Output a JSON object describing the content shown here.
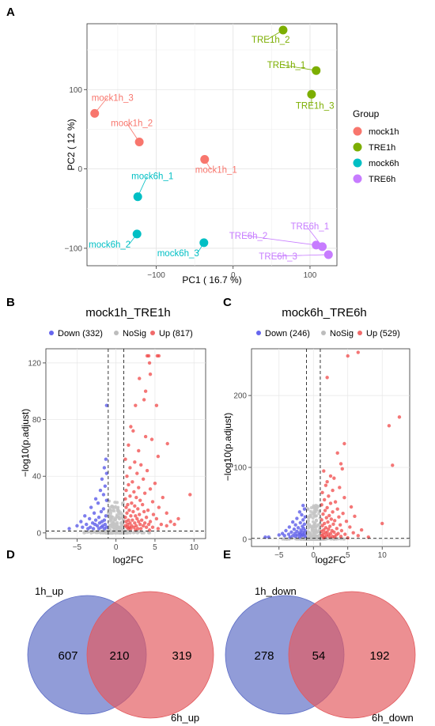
{
  "panels": {
    "A": "A",
    "B": "B",
    "C": "C",
    "D": "D",
    "E": "E"
  },
  "chart_data": [
    {
      "id": "pca",
      "type": "scatter",
      "title": "",
      "xlabel": "PC1 ( 16.7 %)",
      "ylabel": "PC2 ( 12 %)",
      "xlim": [
        -190,
        135
      ],
      "ylim": [
        -122,
        183
      ],
      "xticks": [
        -100,
        0,
        100
      ],
      "yticks": [
        -100,
        0,
        100
      ],
      "grid": true,
      "legend_title": "Group",
      "legend_position": "right",
      "groups": [
        {
          "name": "mock1h",
          "color": "#F8766D"
        },
        {
          "name": "TRE1h",
          "color": "#7CAE00"
        },
        {
          "name": "mock6h",
          "color": "#00BFC4"
        },
        {
          "name": "TRE6h",
          "color": "#C77CFF"
        }
      ],
      "points": [
        {
          "label": "mock1h_3",
          "group": "mock1h",
          "x": -180,
          "y": 70
        },
        {
          "label": "mock1h_2",
          "group": "mock1h",
          "x": -122,
          "y": 34
        },
        {
          "label": "mock1h_1",
          "group": "mock1h",
          "x": -37,
          "y": 12
        },
        {
          "label": "TRE1h_2",
          "group": "TRE1h",
          "x": 65,
          "y": 175
        },
        {
          "label": "TRE1h_1",
          "group": "TRE1h",
          "x": 108,
          "y": 124
        },
        {
          "label": "TRE1h_3",
          "group": "TRE1h",
          "x": 102,
          "y": 94
        },
        {
          "label": "mock6h_1",
          "group": "mock6h",
          "x": -124,
          "y": -35
        },
        {
          "label": "mock6h_2",
          "group": "mock6h",
          "x": -125,
          "y": -82
        },
        {
          "label": "mock6h_3",
          "group": "mock6h",
          "x": -38,
          "y": -93
        },
        {
          "label": "TRE6h_2",
          "group": "TRE6h",
          "x": 108,
          "y": -96
        },
        {
          "label": "TRE6h_1",
          "group": "TRE6h",
          "x": 116,
          "y": -98
        },
        {
          "label": "TRE6h_3",
          "group": "TRE6h",
          "x": 124,
          "y": -108
        }
      ]
    },
    {
      "id": "volcano1",
      "type": "scatter",
      "title": "mock1h_TRE1h",
      "xlabel": "log2FC",
      "ylabel": "−log10(p.adjust)",
      "xlim": [
        -9,
        11.5
      ],
      "ylim": [
        -4,
        130
      ],
      "xticks": [
        -5,
        0,
        5,
        10
      ],
      "yticks": [
        0,
        40,
        80,
        120
      ],
      "grid": true,
      "thresholds": {
        "x": [
          -1,
          1
        ],
        "y": 1.3
      },
      "legend_position": "top",
      "legend": [
        {
          "name": "Down (332)",
          "color": "#6666ee"
        },
        {
          "name": "NoSig",
          "color": "#bdbdbd"
        },
        {
          "name": "Up (817)",
          "color": "#f06a6a"
        }
      ],
      "points": {
        "down": [
          [
            -1.3,
            52
          ],
          [
            -1.5,
            46
          ],
          [
            -1.2,
            42
          ],
          [
            -1.8,
            38
          ],
          [
            -1.4,
            33
          ],
          [
            -2,
            30
          ],
          [
            -1.6,
            27
          ],
          [
            -2.6,
            24
          ],
          [
            -1.2,
            23
          ],
          [
            -2.3,
            21
          ],
          [
            -3.2,
            18
          ],
          [
            -1.6,
            17
          ],
          [
            -1.9,
            15
          ],
          [
            -2.8,
            14
          ],
          [
            -4,
            12
          ],
          [
            -1.3,
            12
          ],
          [
            -2.2,
            11
          ],
          [
            -3.4,
            10
          ],
          [
            -1.5,
            9
          ],
          [
            -2.6,
            9
          ],
          [
            -4.5,
            8
          ],
          [
            -1.8,
            8
          ],
          [
            -3,
            7
          ],
          [
            -2.1,
            7
          ],
          [
            -1.4,
            6
          ],
          [
            -3.8,
            6
          ],
          [
            -2.7,
            6
          ],
          [
            -1.7,
            5
          ],
          [
            -5,
            5
          ],
          [
            -2.4,
            5
          ],
          [
            -3.3,
            4
          ],
          [
            -1.9,
            4
          ],
          [
            -1.2,
            4
          ],
          [
            -4.3,
            4
          ],
          [
            -2.9,
            3
          ],
          [
            -2.2,
            3
          ],
          [
            -3.6,
            3
          ],
          [
            -1.5,
            3
          ],
          [
            -6,
            3
          ],
          [
            -1.2,
            90
          ]
        ],
        "up": [
          [
            4,
            125
          ],
          [
            4.2,
            125
          ],
          [
            5.3,
            125
          ],
          [
            5.5,
            125
          ],
          [
            4.3,
            120
          ],
          [
            4.4,
            112
          ],
          [
            3,
            109
          ],
          [
            3.8,
            100
          ],
          [
            3.6,
            94
          ],
          [
            2.5,
            90
          ],
          [
            5.2,
            90
          ],
          [
            1.9,
            75
          ],
          [
            2.2,
            72
          ],
          [
            3.8,
            68
          ],
          [
            4.6,
            66
          ],
          [
            6.6,
            63
          ],
          [
            1.6,
            62
          ],
          [
            2.9,
            58
          ],
          [
            5.4,
            54
          ],
          [
            1.2,
            52
          ],
          [
            2.4,
            50
          ],
          [
            3.2,
            48
          ],
          [
            1.8,
            46
          ],
          [
            4,
            44
          ],
          [
            2.7,
            42
          ],
          [
            1.4,
            40
          ],
          [
            3.5,
            38
          ],
          [
            2.1,
            36
          ],
          [
            5,
            35
          ],
          [
            1.6,
            34
          ],
          [
            2.9,
            32
          ],
          [
            4.4,
            31
          ],
          [
            1.3,
            30
          ],
          [
            2.3,
            29
          ],
          [
            3.7,
            28
          ],
          [
            9.5,
            27
          ],
          [
            1.8,
            26
          ],
          [
            2.6,
            25
          ],
          [
            6,
            25
          ],
          [
            1.2,
            24
          ],
          [
            3.1,
            23
          ],
          [
            4.7,
            22
          ],
          [
            2,
            21
          ],
          [
            1.5,
            20
          ],
          [
            3.4,
            20
          ],
          [
            2.4,
            19
          ],
          [
            5.5,
            18
          ],
          [
            1.3,
            18
          ],
          [
            2.8,
            17
          ],
          [
            4.1,
            16
          ],
          [
            1.7,
            16
          ],
          [
            3.6,
            15
          ],
          [
            2.2,
            15
          ],
          [
            6.5,
            14
          ],
          [
            1.4,
            14
          ],
          [
            3,
            13
          ],
          [
            4.8,
            13
          ],
          [
            1.9,
            12
          ],
          [
            2.5,
            12
          ],
          [
            3.9,
            11
          ],
          [
            8,
            10
          ],
          [
            1.2,
            11
          ],
          [
            2.7,
            10
          ],
          [
            5.2,
            10
          ],
          [
            1.6,
            9
          ],
          [
            3.3,
            9
          ],
          [
            2.1,
            9
          ],
          [
            4.4,
            8
          ],
          [
            1.3,
            8
          ],
          [
            2.9,
            8
          ],
          [
            7,
            8
          ],
          [
            1.8,
            7
          ],
          [
            3.7,
            7
          ],
          [
            2.4,
            7
          ],
          [
            5.8,
            6
          ],
          [
            1.5,
            6
          ],
          [
            3.1,
            6
          ],
          [
            4.2,
            6
          ],
          [
            2,
            5
          ],
          [
            1.2,
            5
          ],
          [
            2.6,
            5
          ],
          [
            6.5,
            5
          ],
          [
            3.5,
            5
          ],
          [
            1.7,
            4
          ],
          [
            4.7,
            4
          ],
          [
            2.3,
            4
          ],
          [
            1.4,
            4
          ],
          [
            3.9,
            4
          ],
          [
            2.8,
            3
          ],
          [
            1.9,
            3
          ],
          [
            5.4,
            3
          ],
          [
            3.2,
            3
          ],
          [
            1.6,
            3
          ],
          [
            2.5,
            2
          ],
          [
            4.3,
            2
          ],
          [
            7.5,
            6
          ]
        ]
      }
    },
    {
      "id": "volcano2",
      "type": "scatter",
      "title": "mock6h_TRE6h",
      "xlabel": "log2FC",
      "ylabel": "−log10(p.adjust)",
      "xlim": [
        -9,
        14
      ],
      "ylim": [
        -10,
        265
      ],
      "xticks": [
        -5,
        0,
        5,
        10
      ],
      "yticks": [
        0,
        100,
        200
      ],
      "grid": true,
      "thresholds": {
        "x": [
          -1,
          1
        ],
        "y": 1.3
      },
      "legend_position": "top",
      "legend": [
        {
          "name": "Down (246)",
          "color": "#6666ee"
        },
        {
          "name": "NoSig",
          "color": "#bdbdbd"
        },
        {
          "name": "Up (529)",
          "color": "#f06a6a"
        }
      ],
      "points": {
        "down": [
          [
            -1.5,
            47
          ],
          [
            -1.3,
            42
          ],
          [
            -2,
            38
          ],
          [
            -1.7,
            34
          ],
          [
            -1.2,
            31
          ],
          [
            -2.4,
            29
          ],
          [
            -1.5,
            27
          ],
          [
            -3,
            24
          ],
          [
            -1.9,
            23
          ],
          [
            -1.3,
            21
          ],
          [
            -2.6,
            20
          ],
          [
            -1.6,
            18
          ],
          [
            -3.5,
            17
          ],
          [
            -2.2,
            16
          ],
          [
            -1.4,
            15
          ],
          [
            -2.8,
            14
          ],
          [
            -1.8,
            13
          ],
          [
            -4,
            12
          ],
          [
            -1.2,
            12
          ],
          [
            -2.4,
            11
          ],
          [
            -3.2,
            10
          ],
          [
            -1.6,
            10
          ],
          [
            -2,
            9
          ],
          [
            -4.5,
            8
          ],
          [
            -1.3,
            8
          ],
          [
            -2.7,
            8
          ],
          [
            -3.6,
            7
          ],
          [
            -1.9,
            7
          ],
          [
            -5,
            6
          ],
          [
            -1.5,
            6
          ],
          [
            -2.3,
            6
          ],
          [
            -3,
            5
          ],
          [
            -1.7,
            5
          ],
          [
            -4.2,
            5
          ],
          [
            -2.6,
            4
          ],
          [
            -1.2,
            4
          ],
          [
            -6.5,
            3
          ],
          [
            -7,
            3
          ],
          [
            -3.4,
            3
          ],
          [
            -2,
            3
          ]
        ],
        "up": [
          [
            5,
            255
          ],
          [
            6.5,
            260
          ],
          [
            2,
            225
          ],
          [
            11,
            158
          ],
          [
            12.5,
            170
          ],
          [
            4.5,
            133
          ],
          [
            3.5,
            120
          ],
          [
            4,
            105
          ],
          [
            4.2,
            98
          ],
          [
            11.5,
            103
          ],
          [
            1.5,
            95
          ],
          [
            2.5,
            88
          ],
          [
            3,
            85
          ],
          [
            2,
            80
          ],
          [
            1.8,
            75
          ],
          [
            3.8,
            72
          ],
          [
            2.8,
            68
          ],
          [
            1.3,
            65
          ],
          [
            2.2,
            60
          ],
          [
            4.5,
            58
          ],
          [
            1.6,
            55
          ],
          [
            3.2,
            52
          ],
          [
            2.5,
            50
          ],
          [
            1.2,
            48
          ],
          [
            5.5,
            45
          ],
          [
            2,
            44
          ],
          [
            3.5,
            42
          ],
          [
            1.7,
            40
          ],
          [
            2.8,
            38
          ],
          [
            4.3,
            36
          ],
          [
            1.4,
            35
          ],
          [
            2.3,
            33
          ],
          [
            6,
            32
          ],
          [
            3.7,
            31
          ],
          [
            1.9,
            30
          ],
          [
            2.6,
            28
          ],
          [
            1.2,
            27
          ],
          [
            3.1,
            26
          ],
          [
            4.8,
            25
          ],
          [
            2.1,
            24
          ],
          [
            10,
            22
          ],
          [
            1.6,
            22
          ],
          [
            2.9,
            21
          ],
          [
            3.9,
            20
          ],
          [
            1.3,
            19
          ],
          [
            2.4,
            18
          ],
          [
            5.3,
            17
          ],
          [
            1.8,
            16
          ],
          [
            3.4,
            15
          ],
          [
            2.2,
            14
          ],
          [
            7,
            13
          ],
          [
            1.5,
            13
          ],
          [
            2.7,
            12
          ],
          [
            4.1,
            12
          ],
          [
            1.2,
            11
          ],
          [
            3,
            10
          ],
          [
            2,
            10
          ],
          [
            5.8,
            9
          ],
          [
            1.7,
            9
          ],
          [
            3.6,
            8
          ],
          [
            2.5,
            8
          ],
          [
            1.4,
            7
          ],
          [
            4.6,
            7
          ],
          [
            2.2,
            6
          ],
          [
            3.3,
            6
          ],
          [
            1.9,
            5
          ],
          [
            6.5,
            5
          ],
          [
            1.2,
            5
          ],
          [
            2.8,
            4
          ],
          [
            4,
            4
          ],
          [
            1.6,
            3
          ],
          [
            3.1,
            3
          ],
          [
            8,
            3
          ],
          [
            2.4,
            3
          ],
          [
            5,
            2
          ],
          [
            1.5,
            2
          ]
        ]
      }
    },
    {
      "id": "venn_up",
      "type": "venn",
      "sets": [
        {
          "name": "1h_up",
          "color": "#5d6dc6"
        },
        {
          "name": "6h_up",
          "color": "#e35a5e"
        }
      ],
      "values": {
        "only_a": 607,
        "both": 210,
        "only_b": 319
      }
    },
    {
      "id": "venn_down",
      "type": "venn",
      "sets": [
        {
          "name": "1h_down",
          "color": "#5d6dc6"
        },
        {
          "name": "6h_down",
          "color": "#e35a5e"
        }
      ],
      "values": {
        "only_a": 278,
        "both": 54,
        "only_b": 192
      }
    }
  ]
}
